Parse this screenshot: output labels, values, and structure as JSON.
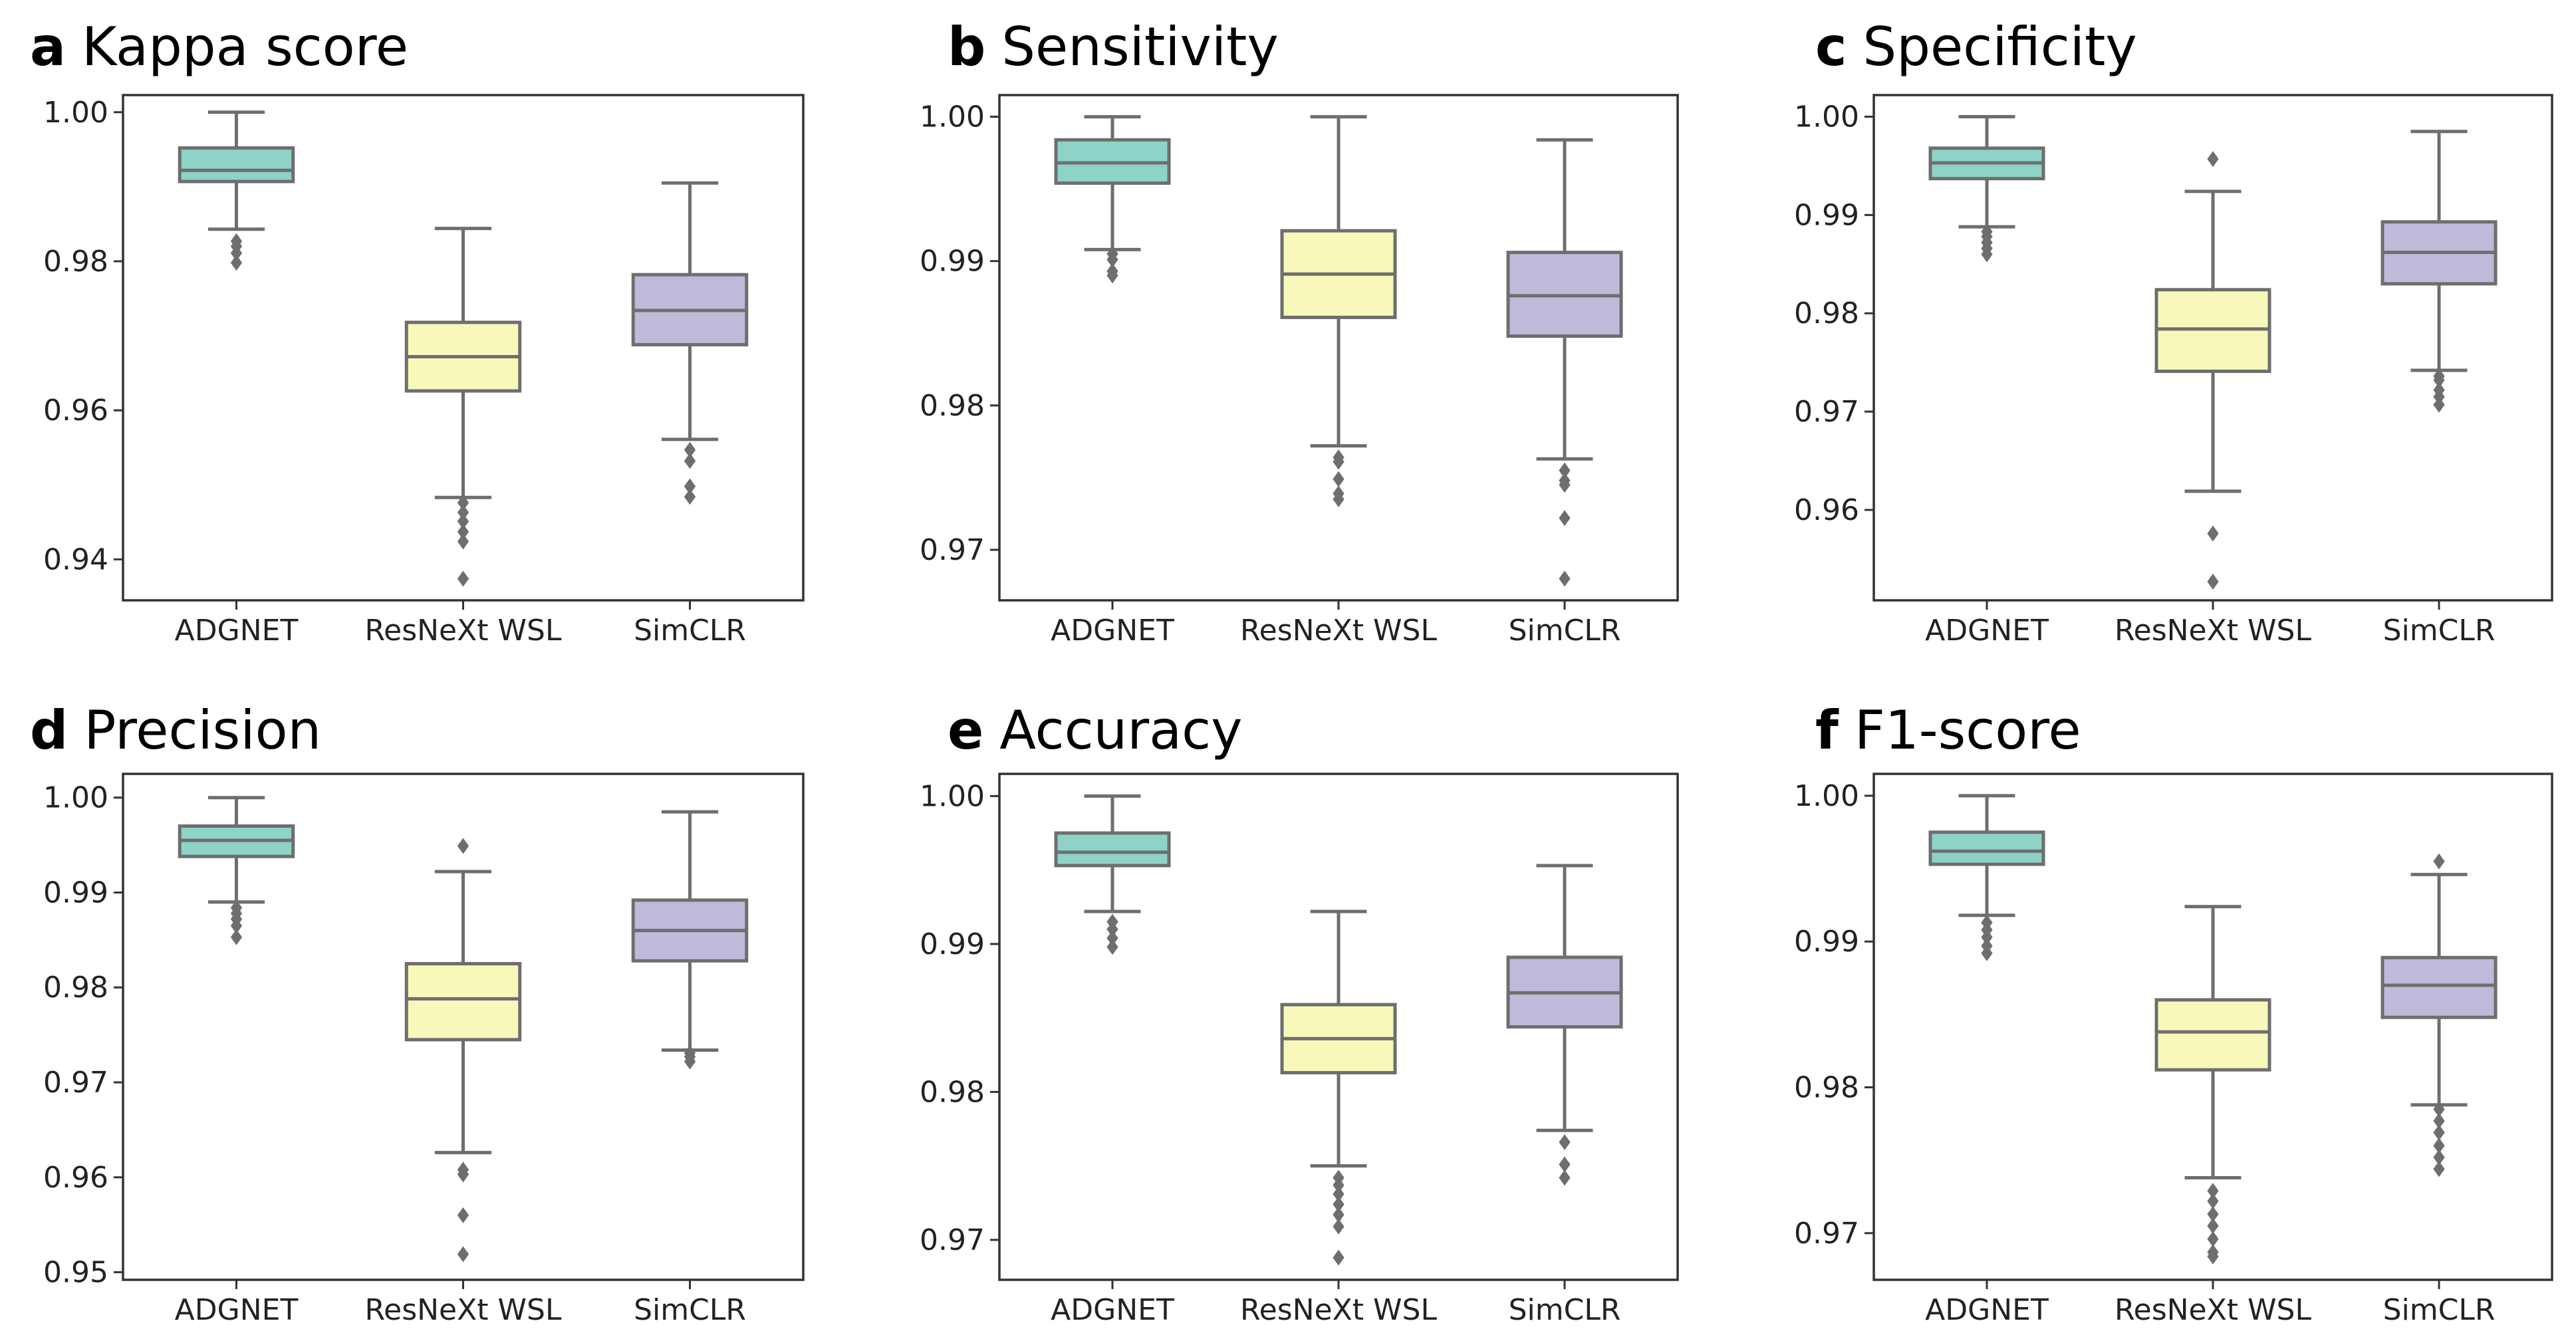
{
  "figure": {
    "box_colors": [
      "#8dd3c7",
      "#f7f8ba",
      "#bebada"
    ],
    "line_color": "#6e6e6e",
    "frame_color": "#333333"
  },
  "chart_data": [
    {
      "type": "box",
      "panel_letter": "a",
      "title": "Kappa score",
      "categories": [
        "ADGNET",
        "ResNeXt WSL",
        "SimCLR"
      ],
      "ylim": [
        0.9345,
        1.0023
      ],
      "yticks": [
        0.94,
        0.96,
        0.98,
        1.0
      ],
      "ytick_labels": [
        "0.94",
        "0.96",
        "0.98",
        "1.00"
      ],
      "series": [
        {
          "name": "ADGNET",
          "q1": 0.9907,
          "median": 0.9922,
          "q3": 0.9952,
          "whisker_low": 0.9843,
          "whisker_high": 1.0,
          "outliers": [
            0.9827,
            0.982,
            0.9811,
            0.9798
          ]
        },
        {
          "name": "ResNeXt WSL",
          "q1": 0.9626,
          "median": 0.9672,
          "q3": 0.9718,
          "whisker_low": 0.9483,
          "whisker_high": 0.9844,
          "outliers": [
            0.9476,
            0.9463,
            0.9451,
            0.9437,
            0.9424,
            0.9374
          ]
        },
        {
          "name": "SimCLR",
          "q1": 0.9688,
          "median": 0.9734,
          "q3": 0.9782,
          "whisker_low": 0.9561,
          "whisker_high": 0.9905,
          "outliers": [
            0.9547,
            0.9532,
            0.9498,
            0.9484
          ]
        }
      ]
    },
    {
      "type": "box",
      "panel_letter": "b",
      "title": "Sensitivity",
      "categories": [
        "ADGNET",
        "ResNeXt WSL",
        "SimCLR"
      ],
      "ylim": [
        0.9665,
        1.0015
      ],
      "yticks": [
        0.97,
        0.98,
        0.99,
        1.0
      ],
      "ytick_labels": [
        "0.97",
        "0.98",
        "0.99",
        "1.00"
      ],
      "series": [
        {
          "name": "ADGNET",
          "q1": 0.9954,
          "median": 0.9968,
          "q3": 0.9984,
          "whisker_low": 0.9908,
          "whisker_high": 1.0,
          "outliers": [
            0.9905,
            0.9901,
            0.9893,
            0.989
          ]
        },
        {
          "name": "ResNeXt WSL",
          "q1": 0.9861,
          "median": 0.9891,
          "q3": 0.9921,
          "whisker_low": 0.9772,
          "whisker_high": 1.0,
          "outliers": [
            0.9764,
            0.9761,
            0.9749,
            0.9739,
            0.9735
          ]
        },
        {
          "name": "SimCLR",
          "q1": 0.9848,
          "median": 0.9876,
          "q3": 0.9906,
          "whisker_low": 0.9763,
          "whisker_high": 0.9984,
          "outliers": [
            0.9755,
            0.9748,
            0.9745,
            0.9722,
            0.968
          ]
        }
      ]
    },
    {
      "type": "box",
      "panel_letter": "c",
      "title": "Specificity",
      "categories": [
        "ADGNET",
        "ResNeXt WSL",
        "SimCLR"
      ],
      "ylim": [
        0.9508,
        1.0022
      ],
      "yticks": [
        0.96,
        0.97,
        0.98,
        0.99,
        1.0
      ],
      "ytick_labels": [
        "0.96",
        "0.97",
        "0.98",
        "0.99",
        "1.00"
      ],
      "series": [
        {
          "name": "ADGNET",
          "q1": 0.9937,
          "median": 0.9953,
          "q3": 0.9968,
          "whisker_low": 0.9888,
          "whisker_high": 1.0,
          "outliers": [
            0.9883,
            0.9878,
            0.9872,
            0.9866,
            0.986
          ]
        },
        {
          "name": "ResNeXt WSL",
          "q1": 0.9741,
          "median": 0.9784,
          "q3": 0.9824,
          "whisker_low": 0.9619,
          "whisker_high": 0.9924,
          "outliers": [
            0.9957,
            0.9576,
            0.9527
          ]
        },
        {
          "name": "SimCLR",
          "q1": 0.983,
          "median": 0.9862,
          "q3": 0.9893,
          "whisker_low": 0.9742,
          "whisker_high": 0.9985,
          "outliers": [
            0.9736,
            0.9732,
            0.9722,
            0.9715,
            0.9707
          ]
        }
      ]
    },
    {
      "type": "box",
      "panel_letter": "d",
      "title": "Precision",
      "categories": [
        "ADGNET",
        "ResNeXt WSL",
        "SimCLR"
      ],
      "ylim": [
        0.9492,
        1.0025
      ],
      "yticks": [
        0.95,
        0.96,
        0.97,
        0.98,
        0.99,
        1.0
      ],
      "ytick_labels": [
        "0.95",
        "0.96",
        "0.97",
        "0.98",
        "0.99",
        "1.00"
      ],
      "series": [
        {
          "name": "ADGNET",
          "q1": 0.9938,
          "median": 0.9955,
          "q3": 0.997,
          "whisker_low": 0.989,
          "whisker_high": 1.0,
          "outliers": [
            0.9884,
            0.9878,
            0.9872,
            0.9865,
            0.9853
          ]
        },
        {
          "name": "ResNeXt WSL",
          "q1": 0.9745,
          "median": 0.9788,
          "q3": 0.9825,
          "whisker_low": 0.9626,
          "whisker_high": 0.9922,
          "outliers": [
            0.9949,
            0.9608,
            0.9603,
            0.956,
            0.9519
          ]
        },
        {
          "name": "SimCLR",
          "q1": 0.9828,
          "median": 0.986,
          "q3": 0.9892,
          "whisker_low": 0.9734,
          "whisker_high": 0.9985,
          "outliers": [
            0.9731,
            0.9727,
            0.9722
          ]
        }
      ]
    },
    {
      "type": "box",
      "panel_letter": "e",
      "title": "Accuracy",
      "categories": [
        "ADGNET",
        "ResNeXt WSL",
        "SimCLR"
      ],
      "ylim": [
        0.9673,
        1.0015
      ],
      "yticks": [
        0.97,
        0.98,
        0.99,
        1.0
      ],
      "ytick_labels": [
        "0.97",
        "0.98",
        "0.99",
        "1.00"
      ],
      "series": [
        {
          "name": "ADGNET",
          "q1": 0.9953,
          "median": 0.9962,
          "q3": 0.9975,
          "whisker_low": 0.9922,
          "whisker_high": 1.0,
          "outliers": [
            0.9915,
            0.991,
            0.9904,
            0.9898
          ]
        },
        {
          "name": "ResNeXt WSL",
          "q1": 0.9813,
          "median": 0.9836,
          "q3": 0.9859,
          "whisker_low": 0.975,
          "whisker_high": 0.9922,
          "outliers": [
            0.9742,
            0.9737,
            0.9731,
            0.9724,
            0.9717,
            0.9709,
            0.9688
          ]
        },
        {
          "name": "SimCLR",
          "q1": 0.9844,
          "median": 0.9867,
          "q3": 0.9891,
          "whisker_low": 0.9774,
          "whisker_high": 0.9953,
          "outliers": [
            0.9766,
            0.9751,
            0.9742
          ]
        }
      ]
    },
    {
      "type": "box",
      "panel_letter": "f",
      "title": "F1-score",
      "categories": [
        "ADGNET",
        "ResNeXt WSL",
        "SimCLR"
      ],
      "ylim": [
        0.9668,
        1.0015
      ],
      "yticks": [
        0.97,
        0.98,
        0.99,
        1.0
      ],
      "ytick_labels": [
        "0.97",
        "0.98",
        "0.99",
        "1.00"
      ],
      "series": [
        {
          "name": "ADGNET",
          "q1": 0.9953,
          "median": 0.9962,
          "q3": 0.9975,
          "whisker_low": 0.9918,
          "whisker_high": 1.0,
          "outliers": [
            0.9913,
            0.9908,
            0.9903,
            0.9897,
            0.9892
          ]
        },
        {
          "name": "ResNeXt WSL",
          "q1": 0.9812,
          "median": 0.9838,
          "q3": 0.986,
          "whisker_low": 0.9738,
          "whisker_high": 0.9924,
          "outliers": [
            0.9729,
            0.9722,
            0.9713,
            0.9705,
            0.9696,
            0.9687,
            0.9684
          ]
        },
        {
          "name": "SimCLR",
          "q1": 0.9848,
          "median": 0.987,
          "q3": 0.9889,
          "whisker_low": 0.9788,
          "whisker_high": 0.9946,
          "outliers": [
            0.9955,
            0.9785,
            0.9777,
            0.9769,
            0.976,
            0.9752,
            0.9744
          ]
        }
      ]
    }
  ]
}
